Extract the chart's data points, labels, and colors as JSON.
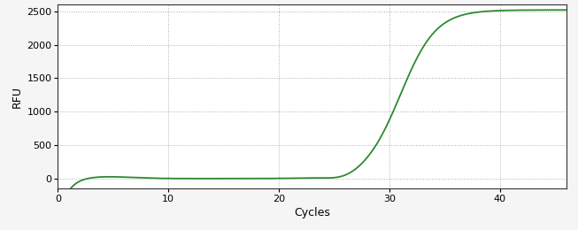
{
  "title": "",
  "xlabel": "Cycles",
  "ylabel": "RFU",
  "xlim": [
    0,
    46
  ],
  "ylim": [
    -150,
    2600
  ],
  "yticks": [
    0,
    500,
    1000,
    1500,
    2000,
    2500
  ],
  "xticks": [
    0,
    10,
    20,
    30,
    40
  ],
  "line_color": "#2d8a2d",
  "line_width": 1.3,
  "background_color": "#f5f5f5",
  "plot_bg_color": "#ffffff",
  "grid_color": "#999999",
  "sigmoid_L": 2520,
  "sigmoid_k": 0.62,
  "sigmoid_x0": 31.0,
  "x_start": 1,
  "x_end": 46
}
